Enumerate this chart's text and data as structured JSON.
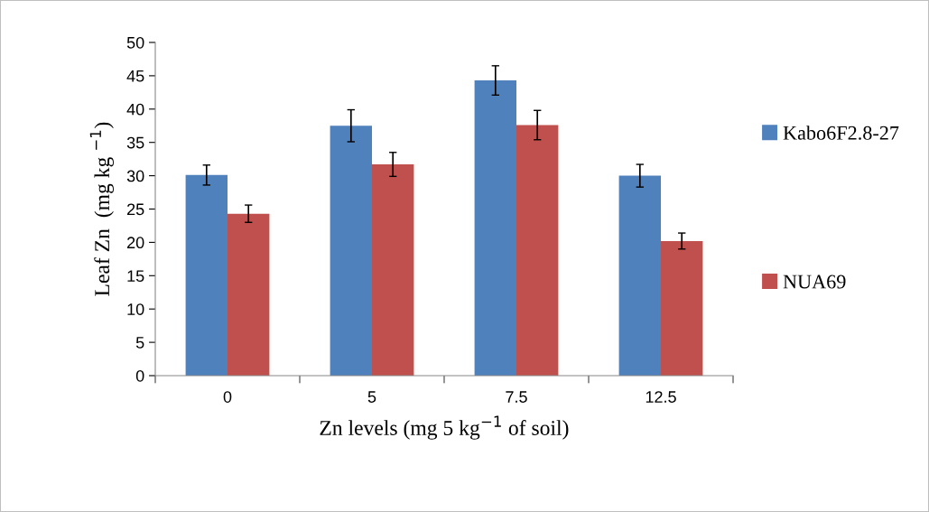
{
  "chart_data": {
    "type": "bar",
    "xlabel": "Zn levels (mg 5 kg$^{−1}$ of soil)",
    "ylabel": "Leaf Zn  (mg kg $^{−1}$)",
    "categories": [
      "0",
      "5",
      "7.5",
      "12.5"
    ],
    "series": [
      {
        "name": "Kabo6F2.8-27",
        "color": "#4f81bd",
        "values": [
          30.1,
          37.5,
          44.3,
          30.0
        ],
        "errors": [
          1.5,
          2.4,
          2.2,
          1.7
        ]
      },
      {
        "name": "NUA69",
        "color": "#c0504d",
        "values": [
          24.3,
          31.7,
          37.6,
          20.2
        ],
        "errors": [
          1.3,
          1.8,
          2.2,
          1.2
        ]
      }
    ],
    "ylim": [
      0,
      50
    ],
    "yticks": [
      0,
      5,
      10,
      15,
      20,
      25,
      30,
      35,
      40,
      45,
      50
    ],
    "grid": false,
    "legend": "right"
  }
}
